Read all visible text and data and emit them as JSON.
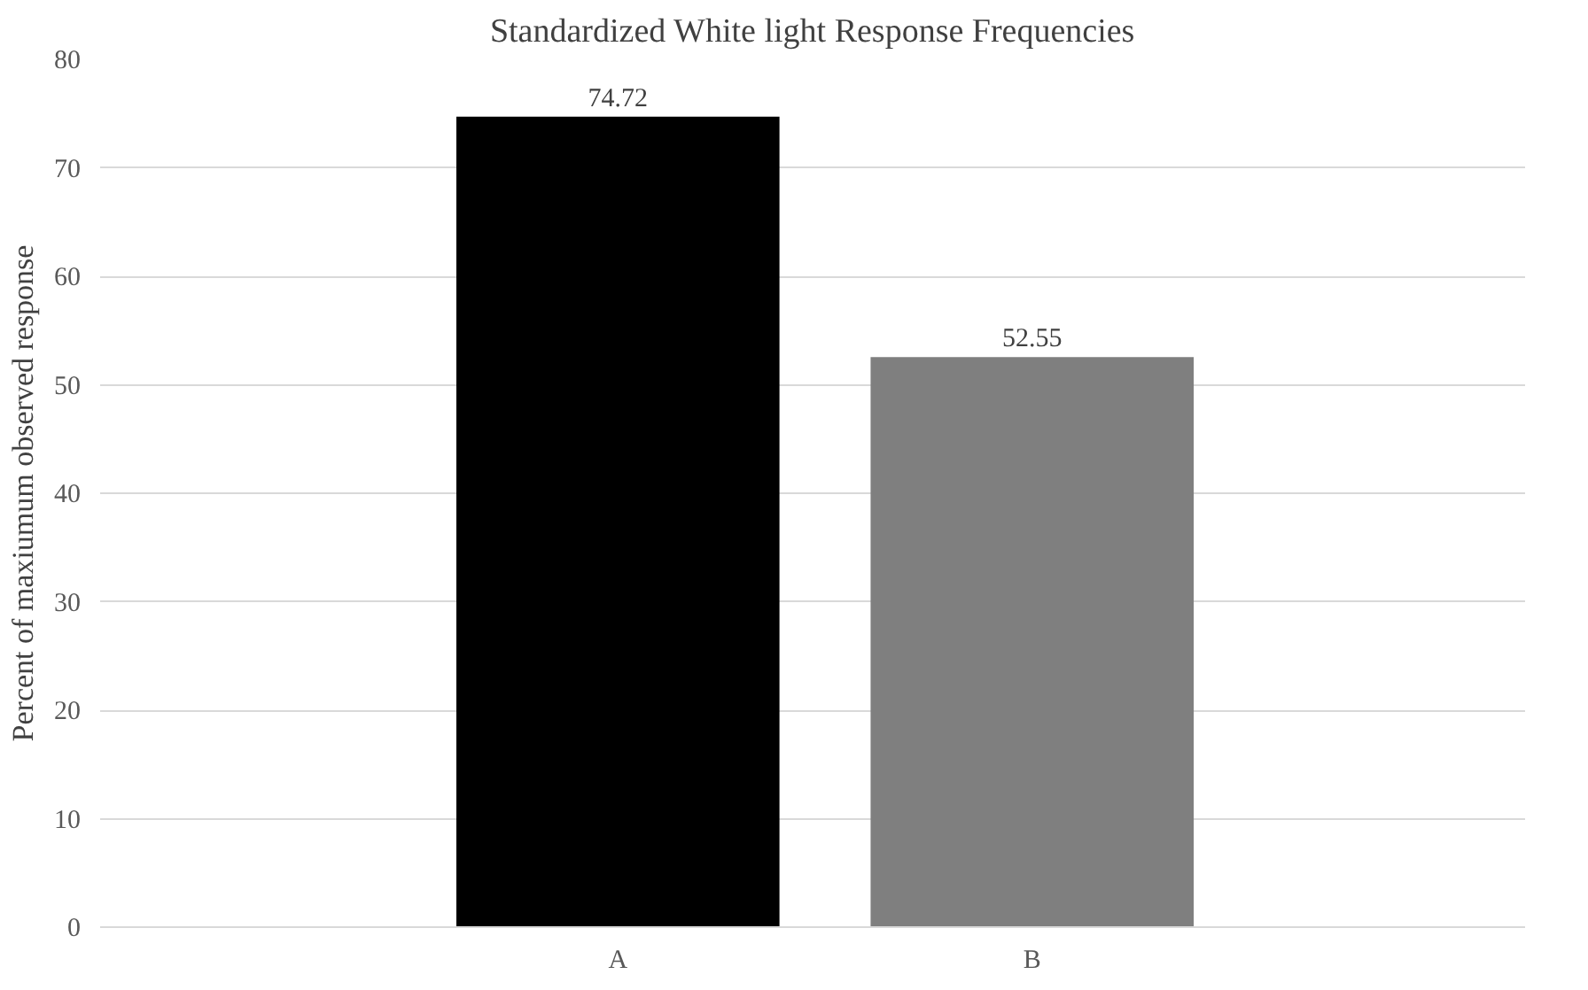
{
  "chart_data": {
    "type": "bar",
    "title": "Standardized White light Response Frequencies",
    "ylabel": "Percent of maxiumum observed response",
    "categories": [
      "A",
      "B"
    ],
    "values": [
      74.72,
      52.55
    ],
    "colors": [
      "#000000",
      "#7f7f7f"
    ],
    "ylim": [
      0,
      80
    ],
    "yticks": [
      0,
      10,
      20,
      30,
      40,
      50,
      60,
      70,
      80
    ],
    "grid": "y",
    "data_labels": true
  }
}
